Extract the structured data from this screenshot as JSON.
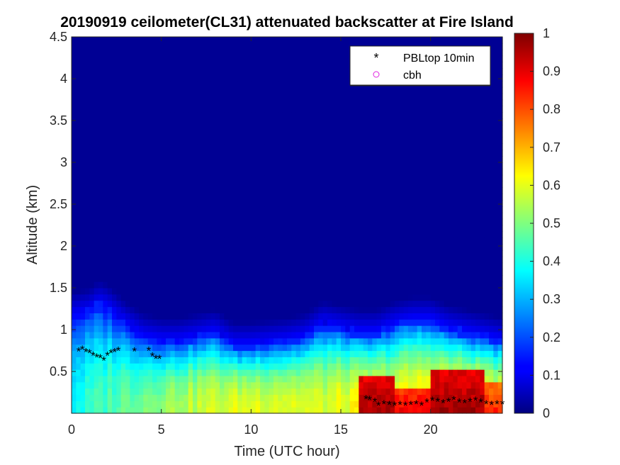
{
  "chart_data": {
    "type": "heatmap",
    "title": "20190919 ceilometer(CL31) attenuated backscatter at Fire Island",
    "xlabel": "Time (UTC hour)",
    "ylabel": "Altitude (km)",
    "xlim": [
      0,
      24
    ],
    "ylim": [
      0,
      4.5
    ],
    "xticks": [
      "0",
      "5",
      "10",
      "15",
      "20"
    ],
    "yticks": [
      "0.5",
      "1",
      "1.5",
      "2",
      "2.5",
      "3",
      "3.5",
      "4",
      "4.5"
    ],
    "colorbar": {
      "range": [
        0,
        1
      ],
      "colormap": "jet",
      "ticks": [
        "0",
        "0.1",
        "0.2",
        "0.3",
        "0.4",
        "0.5",
        "0.6",
        "0.7",
        "0.8",
        "0.9",
        "1"
      ]
    },
    "background_value": 0.02,
    "layer_top_km": [
      [
        0,
        1.2
      ],
      [
        1,
        1.25
      ],
      [
        1.5,
        1.35
      ],
      [
        2,
        1.3
      ],
      [
        3,
        1.1
      ],
      [
        4,
        0.95
      ],
      [
        5,
        0.9
      ],
      [
        6,
        0.9
      ],
      [
        7,
        0.95
      ],
      [
        8,
        1.0
      ],
      [
        9,
        0.85
      ],
      [
        10,
        0.85
      ],
      [
        12,
        0.9
      ],
      [
        13,
        0.95
      ],
      [
        14,
        1.1
      ],
      [
        15,
        1.05
      ],
      [
        16,
        1.0
      ],
      [
        17,
        1.0
      ],
      [
        18,
        1.1
      ],
      [
        19,
        1.15
      ],
      [
        20,
        1.15
      ],
      [
        21,
        1.05
      ],
      [
        22,
        1.0
      ],
      [
        23,
        0.95
      ],
      [
        24,
        0.9
      ]
    ],
    "layer_core_value": [
      [
        0,
        0.38
      ],
      [
        2,
        0.45
      ],
      [
        4,
        0.5
      ],
      [
        6,
        0.55
      ],
      [
        8,
        0.58
      ],
      [
        10,
        0.6
      ],
      [
        12,
        0.6
      ],
      [
        14,
        0.58
      ],
      [
        16,
        0.62
      ],
      [
        18,
        0.62
      ],
      [
        20,
        0.66
      ],
      [
        22,
        0.66
      ],
      [
        24,
        0.63
      ]
    ],
    "high_backscatter_regions": [
      {
        "x_start": 16.1,
        "x_end": 18.0,
        "y_bottom": 0.0,
        "y_top": 0.48,
        "value": 0.97
      },
      {
        "x_start": 18.0,
        "x_end": 20.0,
        "y_bottom": 0.0,
        "y_top": 0.3,
        "value": 0.9
      },
      {
        "x_start": 20.0,
        "x_end": 23.0,
        "y_bottom": 0.0,
        "y_top": 0.55,
        "value": 0.97
      },
      {
        "x_start": 23.0,
        "x_end": 24.0,
        "y_bottom": 0.0,
        "y_top": 0.35,
        "value": 0.85
      }
    ],
    "series": [
      {
        "name": "PBLtop 10min",
        "marker": "*",
        "color": "#000000",
        "x": [
          0.4,
          0.6,
          0.8,
          1.0,
          1.2,
          1.4,
          1.6,
          1.8,
          2.0,
          2.2,
          2.4,
          2.6,
          3.5,
          4.3,
          4.5,
          4.7,
          4.9,
          16.4,
          16.6,
          16.9,
          17.1,
          17.4,
          17.7,
          18.0,
          18.3,
          18.6,
          18.9,
          19.2,
          19.5,
          19.8,
          20.1,
          20.4,
          20.7,
          21.0,
          21.3,
          21.6,
          21.9,
          22.2,
          22.5,
          22.8,
          23.1,
          23.4,
          23.7,
          24.0
        ],
        "y": [
          0.75,
          0.77,
          0.74,
          0.73,
          0.7,
          0.68,
          0.67,
          0.64,
          0.7,
          0.73,
          0.74,
          0.76,
          0.75,
          0.76,
          0.69,
          0.66,
          0.66,
          0.18,
          0.17,
          0.15,
          0.1,
          0.12,
          0.11,
          0.1,
          0.11,
          0.1,
          0.11,
          0.12,
          0.1,
          0.14,
          0.16,
          0.15,
          0.13,
          0.15,
          0.17,
          0.14,
          0.13,
          0.15,
          0.16,
          0.14,
          0.12,
          0.11,
          0.12,
          0.12
        ]
      },
      {
        "name": "cbh",
        "marker": "o",
        "color": "#e020e0",
        "x": [],
        "y": []
      }
    ],
    "legend": {
      "placement": "top-right"
    },
    "grid": false
  }
}
